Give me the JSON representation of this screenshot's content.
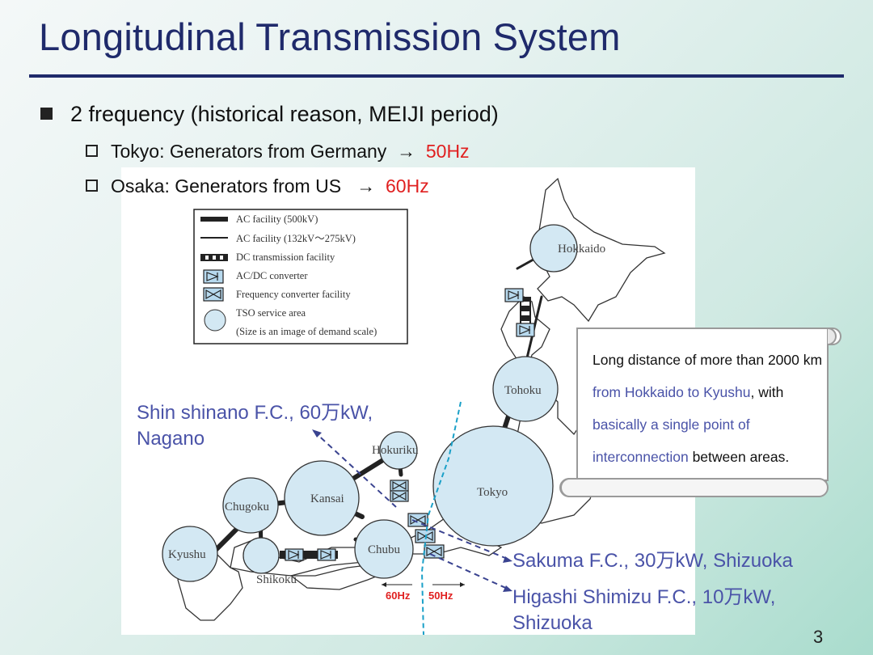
{
  "slide": {
    "title": "Longitudinal Transmission System",
    "bullet": "2 frequency (historical reason, MEIJI period)",
    "sub1": {
      "text": "Tokyo: Generators from Germany",
      "arrow": "→",
      "freq": "50Hz"
    },
    "sub2": {
      "text": "Osaka: Generators from US",
      "arrow": "→",
      "freq": "60Hz"
    },
    "page": "3"
  },
  "legend": {
    "items": [
      "AC facility (500kV)",
      "AC facility (132kV～275kV)",
      "DC transmission facility",
      "AC/DC converter",
      "Frequency converter facility",
      "TSO service area",
      "(Size is an image of demand scale)"
    ]
  },
  "regions": {
    "hokkaido": "Hokkaido",
    "tohoku": "Tohoku",
    "tokyo": "Tokyo",
    "hokuriku": "Hokuriku",
    "chubu": "Chubu",
    "kansai": "Kansai",
    "chugoku": "Chugoku",
    "shikoku": "Shikoku",
    "kyushu": "Kyushu"
  },
  "map_freq": {
    "left": "60Hz",
    "right": "50Hz"
  },
  "callouts": {
    "shin_line1": "Shin shinano F.C., 60万kW,",
    "shin_line2": "Nagano",
    "sakuma": "Sakuma F.C., 30万kW, Shizuoka",
    "higashi_line1": "Higashi Shimizu F.C., 10万kW,",
    "higashi_line2": "Shizuoka"
  },
  "note": {
    "p1": "Long distance of more than 2000 km",
    "p2": "from Hokkaido to Kyushu",
    "p3": ", with",
    "p4": "basically a single point of interconnection",
    "p5": "between areas."
  },
  "colors": {
    "title": "#1f2a6b",
    "accent_red": "#e02020",
    "callout_blue": "#4a53a8",
    "area_fill": "#d3e8f3"
  }
}
